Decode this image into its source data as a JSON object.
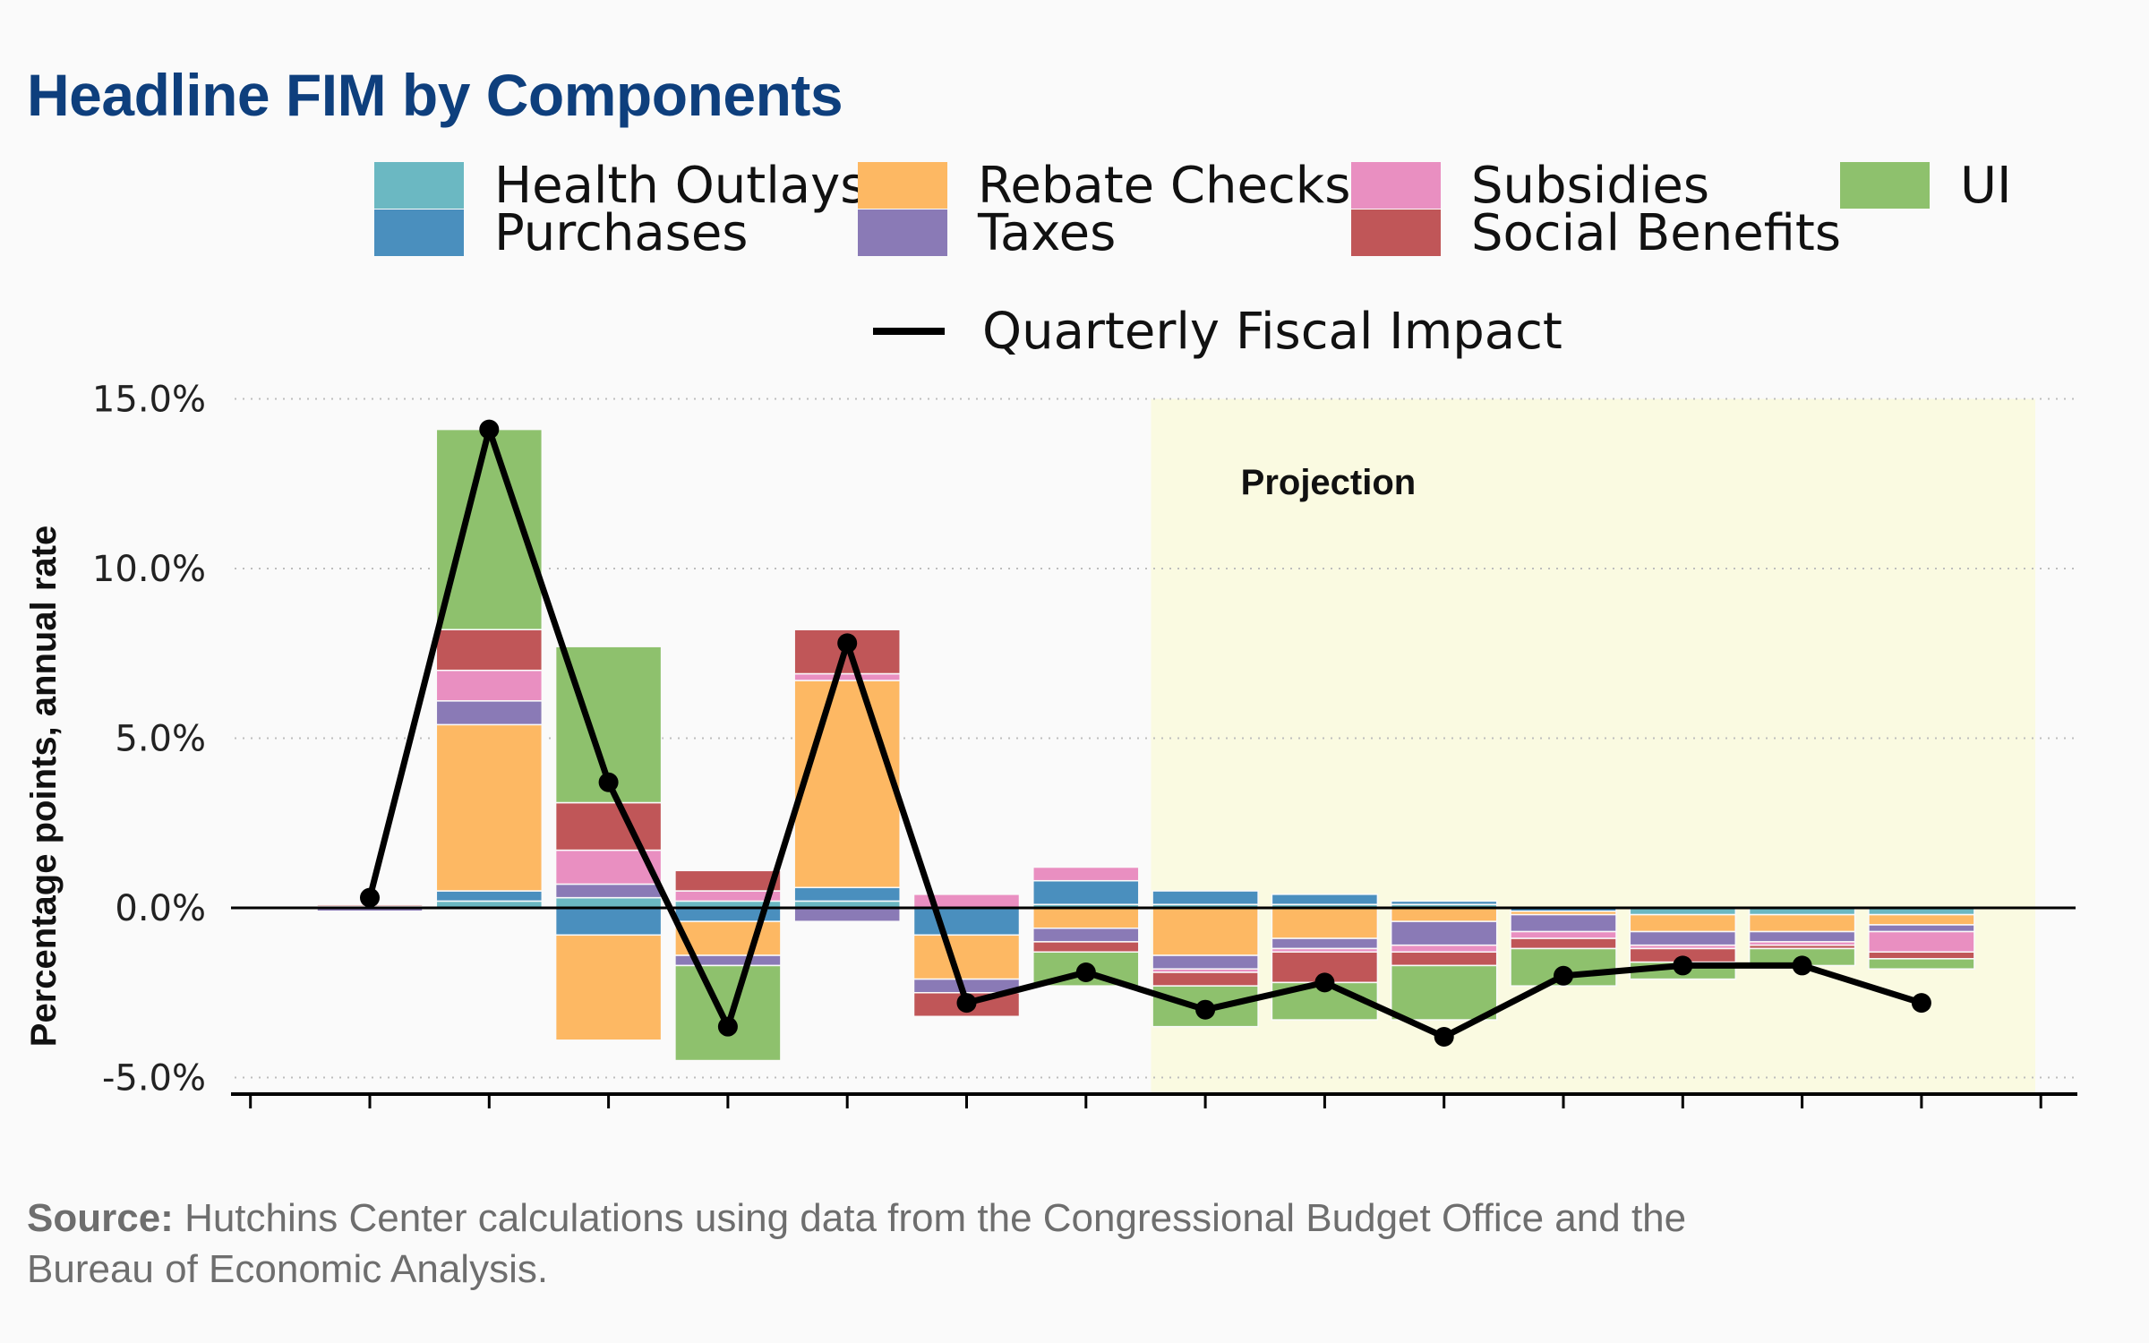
{
  "title": "Headline FIM by Components",
  "legend": {
    "health_outlays": "Health Outlays",
    "purchases": "Purchases",
    "rebate_checks": "Rebate Checks",
    "taxes": "Taxes",
    "subsidies": "Subsidies",
    "social_benefits": "Social Benefits",
    "ui": "UI",
    "quarterly_fiscal_impact": "Quarterly Fiscal Impact"
  },
  "projection_label": "Projection",
  "source": {
    "prefix": "Source:",
    "text": "Hutchins Center calculations using data from the Congressional Budget Office and the Bureau of Economic Analysis."
  },
  "colors": {
    "title": "#0e3f7d",
    "health_outlays": "#6bb8c2",
    "purchases": "#4a8fbe",
    "rebate_checks": "#fdb863",
    "taxes": "#8a7ab6",
    "subsidies": "#e98fc1",
    "social_benefits": "#c05658",
    "ui": "#8ec16d",
    "line": "#000000",
    "projection_shade": "#fafae1"
  },
  "chart_data": {
    "type": "bar",
    "stacked": true,
    "title": "Headline FIM by Components",
    "ylabel": "Percentage points, annual rate",
    "xlabel": "",
    "ylim": [
      -5.5,
      15
    ],
    "yticks": [
      -5,
      0,
      5,
      10,
      15
    ],
    "ytick_labels": [
      "-5.0%",
      "0.0%",
      "5.0%",
      "10.0%",
      "15.0%"
    ],
    "grid": "horizontal dotted",
    "legend_position": "top",
    "projection_start_index": 7,
    "projection_label": "Projection",
    "num_periods": 14,
    "series": [
      {
        "name": "Health Outlays",
        "key": "health_outlays",
        "values": [
          0.0,
          0.2,
          0.3,
          0.2,
          0.2,
          0.0,
          0.1,
          0.1,
          0.1,
          0.1,
          0.0,
          -0.2,
          -0.2,
          -0.2
        ]
      },
      {
        "name": "Purchases",
        "key": "purchases",
        "values": [
          0.0,
          0.3,
          -0.8,
          -0.4,
          0.4,
          -0.8,
          0.7,
          0.4,
          0.3,
          0.1,
          -0.1,
          0.0,
          0.0,
          0.0
        ]
      },
      {
        "name": "Rebate Checks",
        "key": "rebate_checks",
        "values": [
          0.0,
          4.9,
          -3.1,
          -1.0,
          6.1,
          -1.3,
          -0.6,
          -1.4,
          -0.9,
          -0.4,
          -0.1,
          -0.5,
          -0.5,
          -0.3
        ]
      },
      {
        "name": "Taxes",
        "key": "taxes",
        "values": [
          -0.1,
          0.7,
          0.4,
          -0.3,
          -0.4,
          -0.4,
          -0.4,
          -0.4,
          -0.3,
          -0.7,
          -0.5,
          -0.4,
          -0.3,
          -0.2
        ]
      },
      {
        "name": "Subsidies",
        "key": "subsidies",
        "values": [
          0.05,
          0.9,
          1.0,
          0.3,
          0.2,
          0.4,
          0.4,
          -0.1,
          -0.1,
          -0.2,
          -0.2,
          -0.1,
          -0.1,
          -0.6
        ]
      },
      {
        "name": "Social Benefits",
        "key": "social_benefits",
        "values": [
          0.05,
          1.2,
          1.4,
          0.6,
          1.3,
          -0.7,
          -0.3,
          -0.4,
          -0.9,
          -0.4,
          -0.3,
          -0.4,
          -0.1,
          -0.2
        ]
      },
      {
        "name": "UI",
        "key": "ui",
        "values": [
          0.0,
          5.9,
          4.6,
          -2.8,
          0.0,
          0.0,
          -1.0,
          -1.2,
          -1.1,
          -1.6,
          -1.1,
          -0.5,
          -0.5,
          -0.3
        ]
      }
    ],
    "line": {
      "name": "Quarterly Fiscal Impact",
      "values": [
        0.3,
        14.1,
        3.7,
        -3.5,
        7.8,
        -2.8,
        -1.9,
        -3.0,
        -2.2,
        -3.8,
        -2.0,
        -1.7,
        -1.7,
        -2.8
      ]
    }
  }
}
